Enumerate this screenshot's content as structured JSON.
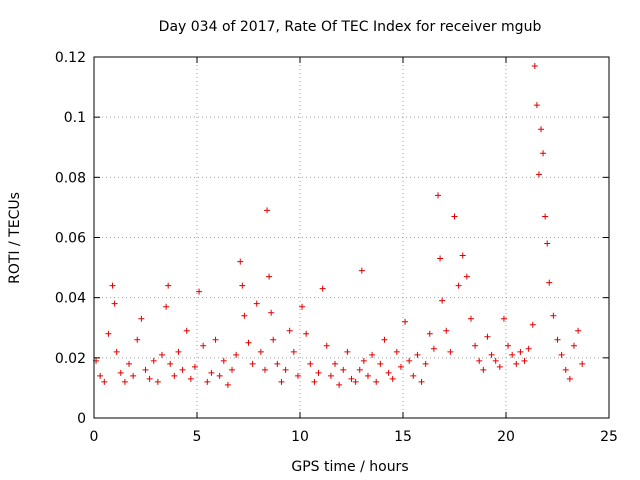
{
  "chart_data": {
    "type": "scatter",
    "title": "Day 034 of 2017, Rate Of TEC Index for receiver mgub",
    "xlabel": "GPS time / hours",
    "ylabel": "ROTI / TECUs",
    "xlim": [
      0,
      25
    ],
    "ylim": [
      0,
      0.12
    ],
    "x_ticks": [
      0,
      5,
      10,
      15,
      20,
      25
    ],
    "x_tick_labels": [
      "0",
      "5",
      "10",
      "15",
      "20",
      "25"
    ],
    "y_ticks": [
      0,
      0.02,
      0.04,
      0.06,
      0.08,
      0.1,
      0.12
    ],
    "y_tick_labels": [
      "0",
      "0.02",
      "0.04",
      "0.06",
      "0.08",
      "0.1",
      "0.12"
    ],
    "grid": true,
    "marker": "+",
    "color": "#e00000",
    "series": [
      {
        "name": "ROTI",
        "x": [
          0.1,
          0.3,
          0.5,
          0.7,
          0.9,
          1.0,
          1.1,
          1.3,
          1.5,
          1.7,
          1.9,
          2.1,
          2.3,
          2.5,
          2.7,
          2.9,
          3.1,
          3.3,
          3.5,
          3.6,
          3.7,
          3.9,
          4.1,
          4.3,
          4.5,
          4.7,
          4.9,
          5.1,
          5.3,
          5.5,
          5.7,
          5.9,
          6.1,
          6.3,
          6.5,
          6.7,
          6.9,
          7.1,
          7.2,
          7.3,
          7.5,
          7.7,
          7.9,
          8.1,
          8.3,
          8.4,
          8.5,
          8.6,
          8.7,
          8.9,
          9.1,
          9.3,
          9.5,
          9.7,
          9.9,
          10.1,
          10.3,
          10.5,
          10.7,
          10.9,
          11.1,
          11.3,
          11.5,
          11.7,
          11.9,
          12.1,
          12.3,
          12.5,
          12.7,
          12.9,
          13.0,
          13.1,
          13.3,
          13.5,
          13.7,
          13.9,
          14.1,
          14.3,
          14.5,
          14.7,
          14.9,
          15.1,
          15.3,
          15.5,
          15.7,
          15.9,
          16.1,
          16.3,
          16.5,
          16.7,
          16.8,
          16.9,
          17.1,
          17.3,
          17.5,
          17.7,
          17.9,
          18.1,
          18.3,
          18.5,
          18.7,
          18.9,
          19.1,
          19.3,
          19.5,
          19.7,
          19.9,
          20.1,
          20.3,
          20.5,
          20.7,
          20.9,
          21.1,
          21.3,
          21.4,
          21.5,
          21.6,
          21.7,
          21.8,
          21.9,
          22.0,
          22.1,
          22.3,
          22.5,
          22.7,
          22.9,
          23.1,
          23.3,
          23.5,
          23.7
        ],
        "values": [
          0.019,
          0.014,
          0.012,
          0.028,
          0.044,
          0.038,
          0.022,
          0.015,
          0.012,
          0.018,
          0.014,
          0.026,
          0.033,
          0.016,
          0.013,
          0.019,
          0.012,
          0.021,
          0.037,
          0.044,
          0.018,
          0.014,
          0.022,
          0.016,
          0.029,
          0.013,
          0.017,
          0.042,
          0.024,
          0.012,
          0.015,
          0.026,
          0.014,
          0.019,
          0.011,
          0.016,
          0.021,
          0.052,
          0.044,
          0.034,
          0.025,
          0.018,
          0.038,
          0.022,
          0.016,
          0.069,
          0.047,
          0.035,
          0.026,
          0.018,
          0.012,
          0.016,
          0.029,
          0.022,
          0.014,
          0.037,
          0.028,
          0.018,
          0.012,
          0.015,
          0.043,
          0.024,
          0.014,
          0.018,
          0.011,
          0.016,
          0.022,
          0.013,
          0.012,
          0.016,
          0.049,
          0.019,
          0.014,
          0.021,
          0.012,
          0.018,
          0.026,
          0.015,
          0.013,
          0.022,
          0.017,
          0.032,
          0.019,
          0.014,
          0.021,
          0.012,
          0.018,
          0.028,
          0.023,
          0.074,
          0.053,
          0.039,
          0.029,
          0.022,
          0.067,
          0.044,
          0.054,
          0.047,
          0.033,
          0.024,
          0.019,
          0.016,
          0.027,
          0.021,
          0.019,
          0.017,
          0.033,
          0.024,
          0.021,
          0.018,
          0.022,
          0.019,
          0.023,
          0.031,
          0.117,
          0.104,
          0.081,
          0.096,
          0.088,
          0.067,
          0.058,
          0.045,
          0.034,
          0.026,
          0.021,
          0.016,
          0.013,
          0.024,
          0.029,
          0.018
        ]
      }
    ]
  }
}
